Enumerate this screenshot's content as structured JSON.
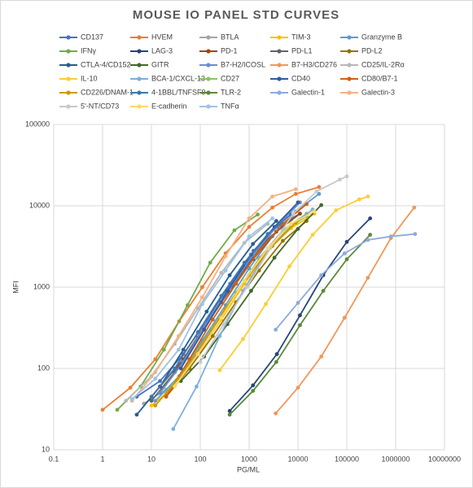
{
  "chart_data": {
    "type": "line",
    "title": "MOUSE IO PANEL STD CURVES",
    "x_label": "PG/ML",
    "y_label": "MFI",
    "x_log": true,
    "y_log": true,
    "grid": true,
    "legend": "top",
    "xlim": [
      0.1,
      10000000
    ],
    "xticks": [
      0.1,
      1,
      10,
      100,
      1000,
      10000,
      100000,
      1000000,
      10000000
    ],
    "ylim": [
      10,
      100000
    ],
    "yticks": [
      10,
      100,
      1000,
      10000,
      100000
    ],
    "series": [
      {
        "name": "CD137",
        "color": "#4472C4",
        "x": [
          5,
          15,
          45,
          140,
          410,
          1230,
          3700,
          11000
        ],
        "values": [
          45,
          70,
          150,
          400,
          1100,
          2800,
          5500,
          8000
        ]
      },
      {
        "name": "HVEM",
        "color": "#ED7D31",
        "x": [
          1,
          3.7,
          12,
          37,
          110,
          330,
          1000,
          3000,
          9000,
          27000
        ],
        "values": [
          31,
          58,
          130,
          380,
          1000,
          2600,
          5500,
          9500,
          14000,
          17000
        ]
      },
      {
        "name": "BTLA",
        "color": "#A5A5A5",
        "x": [
          7,
          20,
          60,
          180,
          550,
          1650,
          4900,
          15000
        ],
        "values": [
          37,
          55,
          110,
          300,
          850,
          2300,
          5000,
          8000
        ]
      },
      {
        "name": "TIM-3",
        "color": "#FFC000",
        "x": [
          10,
          30,
          90,
          270,
          800,
          2400,
          7200,
          21600
        ],
        "values": [
          35,
          60,
          150,
          400,
          1100,
          2800,
          5300,
          8000
        ]
      },
      {
        "name": "Granzyme B",
        "color": "#5B9BD5",
        "x": [
          12,
          37,
          110,
          330,
          1000,
          3000,
          9000,
          27000
        ],
        "values": [
          40,
          80,
          220,
          600,
          1700,
          4200,
          8500,
          14000
        ]
      },
      {
        "name": "IFNγ",
        "color": "#70AD47",
        "x": [
          2,
          6,
          18,
          55,
          160,
          500,
          1500
        ],
        "values": [
          31,
          60,
          170,
          600,
          2000,
          5000,
          7800
        ]
      },
      {
        "name": "LAG-3",
        "color": "#264478",
        "x": [
          400,
          1200,
          3700,
          11000,
          33000,
          100000,
          300000
        ],
        "values": [
          30,
          62,
          150,
          450,
          1400,
          3600,
          7000
        ]
      },
      {
        "name": "PD-1",
        "color": "#9E480E",
        "x": [
          15,
          45,
          130,
          400,
          1200,
          3600,
          11000
        ],
        "values": [
          60,
          130,
          350,
          900,
          2200,
          4800,
          8000
        ]
      },
      {
        "name": "PD-L1",
        "color": "#636363",
        "x": [
          10,
          30,
          90,
          270,
          800,
          2400,
          7200
        ],
        "values": [
          40,
          90,
          240,
          650,
          1700,
          3900,
          6800
        ]
      },
      {
        "name": "PD-L2",
        "color": "#997300",
        "x": [
          20,
          60,
          180,
          540,
          1600,
          4900,
          15000
        ],
        "values": [
          45,
          100,
          250,
          650,
          1600,
          3700,
          6500
        ]
      },
      {
        "name": "CTLA-4/CD152",
        "color": "#255E91",
        "x": [
          5,
          15,
          45,
          135,
          400,
          1200,
          3600
        ],
        "values": [
          27,
          60,
          170,
          500,
          1400,
          3400,
          6500
        ]
      },
      {
        "name": "GITR",
        "color": "#43682B",
        "x": [
          40,
          120,
          360,
          1100,
          3300,
          10000,
          30000
        ],
        "values": [
          70,
          140,
          350,
          900,
          2300,
          5200,
          10200
        ]
      },
      {
        "name": "B7-H2/ICOSL",
        "color": "#698ED0",
        "x": [
          15,
          45,
          130,
          400,
          1200,
          3600,
          11000
        ],
        "values": [
          50,
          120,
          350,
          950,
          2500,
          5500,
          11000
        ]
      },
      {
        "name": "B7-H3/CD276",
        "color": "#F1975A",
        "x": [
          3500,
          10000,
          30000,
          90000,
          270000,
          800000,
          2400000
        ],
        "values": [
          28,
          58,
          140,
          420,
          1300,
          4000,
          9500
        ]
      },
      {
        "name": "CD25/IL-2Rα",
        "color": "#B7B7B7",
        "x": [
          3,
          10,
          30,
          90,
          270,
          800,
          2400
        ],
        "values": [
          40,
          80,
          200,
          550,
          1500,
          3500,
          6000
        ]
      },
      {
        "name": "IL-10",
        "color": "#FFCD33",
        "x": [
          250,
          750,
          2200,
          6700,
          20000,
          60000,
          180000,
          270000
        ],
        "values": [
          95,
          230,
          620,
          1800,
          4400,
          8800,
          12000,
          13000
        ]
      },
      {
        "name": "BCA-1/CXCL-13",
        "color": "#7CAFDD",
        "x": [
          28,
          84,
          250,
          750,
          2200,
          6700,
          20000
        ],
        "values": [
          18,
          60,
          250,
          900,
          2600,
          5500,
          9000
        ]
      },
      {
        "name": "CD27",
        "color": "#8CC168",
        "x": [
          20,
          60,
          180,
          540,
          1600,
          4900,
          15000
        ],
        "values": [
          50,
          120,
          320,
          850,
          2200,
          4800,
          7500
        ]
      },
      {
        "name": "CD40",
        "color": "#335AA1",
        "x": [
          40,
          120,
          360,
          1100,
          3300,
          10000
        ],
        "values": [
          100,
          300,
          900,
          2500,
          5500,
          11000
        ]
      },
      {
        "name": "CD80/B7-1",
        "color": "#D26012",
        "x": [
          20,
          60,
          180,
          540,
          1600,
          4900,
          15000
        ],
        "values": [
          45,
          130,
          400,
          1100,
          2800,
          6000,
          10500
        ]
      },
      {
        "name": "CD226/DNAM-1",
        "color": "#CC9A00",
        "x": [
          12,
          36,
          110,
          330,
          1000,
          3000,
          9000
        ],
        "values": [
          35,
          75,
          200,
          550,
          1400,
          3200,
          6200
        ]
      },
      {
        "name": "4-1BBL/TNFSF9",
        "color": "#3C77AF",
        "x": [
          10,
          30,
          90,
          270,
          800,
          2400,
          7200
        ],
        "values": [
          45,
          100,
          280,
          780,
          2000,
          4500,
          7800
        ]
      },
      {
        "name": "TLR-2",
        "color": "#5A8A39",
        "x": [
          400,
          1200,
          3600,
          11000,
          33000,
          100000,
          300000
        ],
        "values": [
          27,
          53,
          120,
          340,
          900,
          2200,
          4400
        ]
      },
      {
        "name": "Galectin-1",
        "color": "#8FAADC",
        "x": [
          3500,
          10000,
          30000,
          90000,
          270000,
          800000,
          2500000
        ],
        "values": [
          300,
          640,
          1400,
          2600,
          3800,
          4200,
          4500
        ]
      },
      {
        "name": "Galectin-3",
        "color": "#F4B183",
        "x": [
          4,
          12,
          36,
          110,
          330,
          1000,
          3000,
          9000
        ],
        "values": [
          40,
          90,
          250,
          750,
          2400,
          7000,
          13000,
          16000
        ]
      },
      {
        "name": "5'-NT/CD73",
        "color": "#C9C9C9",
        "x": [
          100,
          300,
          900,
          2700,
          8000,
          24000,
          72000,
          100000
        ],
        "values": [
          120,
          350,
          1000,
          3000,
          8000,
          15000,
          21000,
          23000
        ]
      },
      {
        "name": "E-cadherin",
        "color": "#FFD966",
        "x": [
          30,
          90,
          270,
          800,
          2400,
          7200,
          21600
        ],
        "values": [
          60,
          150,
          420,
          1200,
          3000,
          6000,
          8500
        ]
      },
      {
        "name": "TNFα",
        "color": "#9DC3E6",
        "x": [
          4,
          12,
          36,
          110,
          330,
          1000,
          3000
        ],
        "values": [
          42,
          75,
          170,
          620,
          1600,
          4200,
          7000
        ]
      }
    ]
  }
}
